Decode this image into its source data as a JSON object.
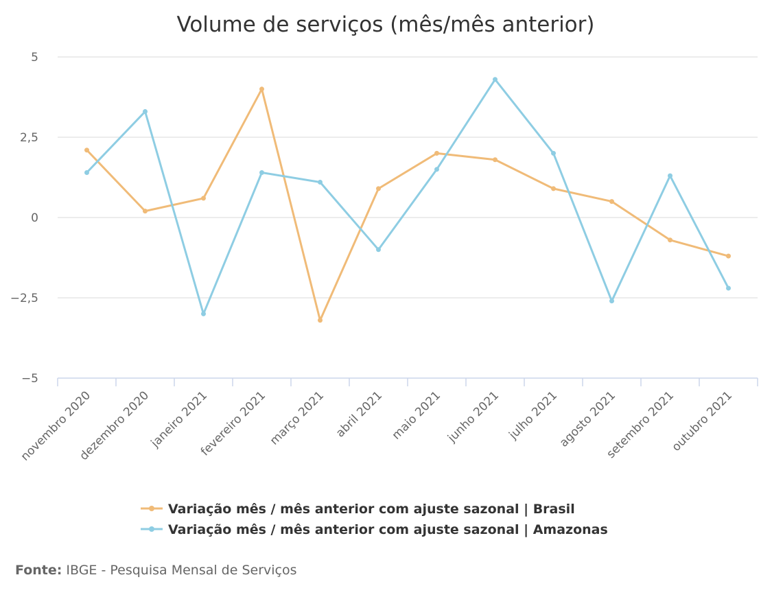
{
  "chart_data": {
    "type": "line",
    "title": "Volume de serviços (mês/mês anterior)",
    "categories": [
      "novembro 2020",
      "dezembro 2020",
      "janeiro 2021",
      "fevereiro 2021",
      "março 2021",
      "abril 2021",
      "maio 2021",
      "junho 2021",
      "julho 2021",
      "agosto 2021",
      "setembro 2021",
      "outubro 2021"
    ],
    "yticks": [
      "5",
      "2,5",
      "0",
      "−2,5",
      "−5"
    ],
    "ytick_values": [
      5,
      2.5,
      0,
      -2.5,
      -5
    ],
    "ylim": [
      -5,
      5
    ],
    "grid": true,
    "legend": "bottom",
    "series": [
      {
        "name": "Variação mês / mês anterior com ajuste sazonal | Brasil",
        "color": "#f0bb78",
        "values": [
          2.1,
          0.2,
          0.6,
          4.0,
          -3.2,
          0.9,
          2.0,
          1.8,
          0.9,
          0.5,
          -0.7,
          -1.2
        ]
      },
      {
        "name": "Variação mês / mês anterior com ajuste sazonal | Amazonas",
        "color": "#8ecde3",
        "values": [
          1.4,
          3.3,
          -3.0,
          1.4,
          1.1,
          -1.0,
          1.5,
          4.3,
          2.0,
          -2.6,
          1.3,
          -2.2
        ]
      }
    ]
  },
  "source": {
    "label": "Fonte:",
    "text": " IBGE - Pesquisa Mensal de Serviços"
  }
}
